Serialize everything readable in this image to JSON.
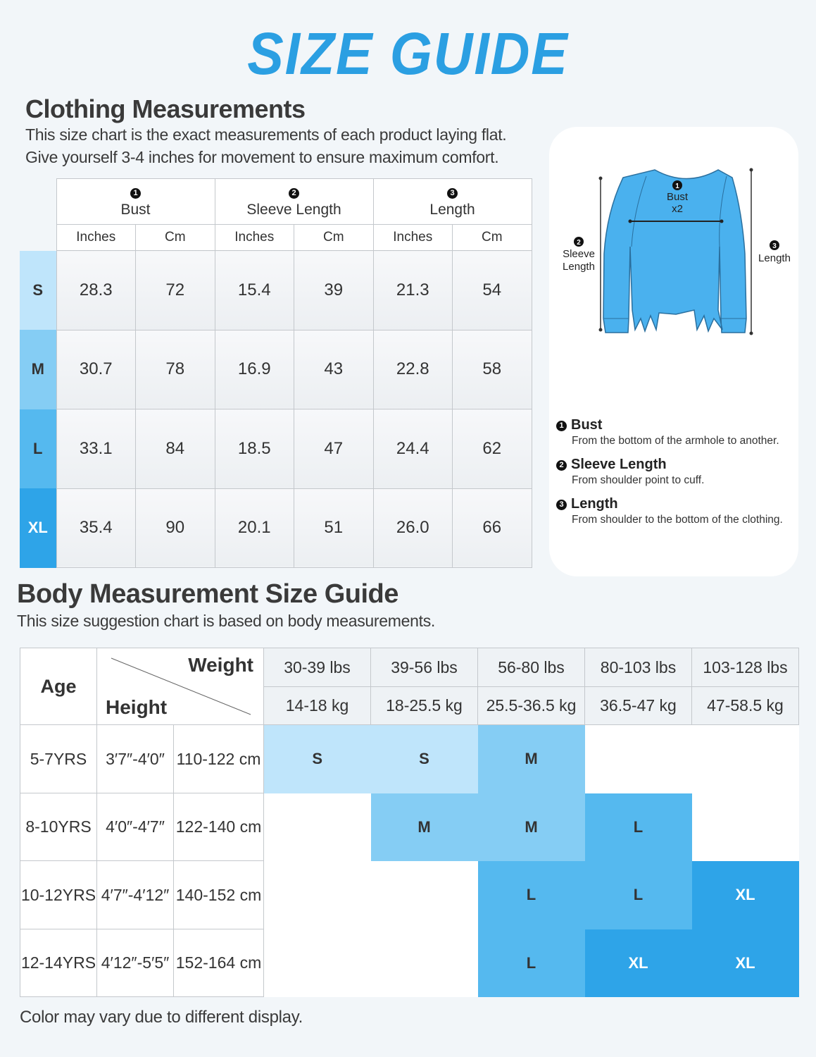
{
  "header": {
    "title": "SIZE GUIDE"
  },
  "clothing": {
    "title": "Clothing Measurements",
    "description": [
      "This size chart is the exact measurements of each product laying flat.",
      "Give yourself 3-4 inches for movement to ensure maximum comfort."
    ],
    "columns": [
      {
        "number": "1",
        "label": "Bust"
      },
      {
        "number": "2",
        "label": "Sleeve Length"
      },
      {
        "number": "3",
        "label": "Length"
      }
    ],
    "units": [
      "Inches",
      "Cm",
      "Inches",
      "Cm",
      "Inches",
      "Cm"
    ],
    "rows": [
      {
        "size": "S",
        "color": "#bfe5fb",
        "text_color": "#333333",
        "values": [
          "28.3",
          "72",
          "15.4",
          "39",
          "21.3",
          "54"
        ]
      },
      {
        "size": "M",
        "color": "#85cdf4",
        "text_color": "#333333",
        "values": [
          "30.7",
          "78",
          "16.9",
          "43",
          "22.8",
          "58"
        ]
      },
      {
        "size": "L",
        "color": "#55b9ef",
        "text_color": "#333333",
        "values": [
          "33.1",
          "84",
          "18.5",
          "47",
          "24.4",
          "62"
        ]
      },
      {
        "size": "XL",
        "color": "#2ea4e8",
        "text_color": "#ffffff",
        "values": [
          "35.4",
          "90",
          "20.1",
          "51",
          "26.0",
          "66"
        ]
      }
    ]
  },
  "diagram": {
    "bust": {
      "number": "1",
      "lines": [
        "Bust",
        "x2"
      ]
    },
    "sleeve": {
      "number": "2",
      "lines": [
        "Sleeve",
        "Length"
      ]
    },
    "length": {
      "number": "3",
      "lines": [
        "Length"
      ]
    }
  },
  "definitions": [
    {
      "number": "1",
      "term": "Bust",
      "description": "From the bottom of the armhole to another."
    },
    {
      "number": "2",
      "term": "Sleeve Length",
      "description": "From shoulder point to cuff."
    },
    {
      "number": "3",
      "term": "Length",
      "description": "From shoulder to the bottom of the clothing."
    }
  ],
  "body": {
    "title": "Body Measurement Size Guide",
    "description": "This size suggestion chart is based on body measurements.",
    "headers": {
      "age": "Age",
      "weight": "Weight",
      "height": "Height"
    },
    "weights": [
      {
        "lbs": "30-39 lbs",
        "kg": "14-18 kg"
      },
      {
        "lbs": "39-56 lbs",
        "kg": "18-25.5 kg"
      },
      {
        "lbs": "56-80 lbs",
        "kg": "25.5-36.5 kg"
      },
      {
        "lbs": "80-103 lbs",
        "kg": "36.5-47 kg"
      },
      {
        "lbs": "103-128 lbs",
        "kg": "47-58.5 kg"
      }
    ],
    "rows": [
      {
        "age": "5-7YRS",
        "height_ft": "3′7″-4′0″",
        "height_cm": "110-122 cm",
        "sizes": [
          "S",
          "S",
          "M",
          null,
          null
        ]
      },
      {
        "age": "8-10YRS",
        "height_ft": "4′0″-4′7″",
        "height_cm": "122-140 cm",
        "sizes": [
          null,
          "M",
          "M",
          "L",
          null
        ]
      },
      {
        "age": "10-12YRS",
        "height_ft": "4′7″-4′12″",
        "height_cm": "140-152 cm",
        "sizes": [
          null,
          null,
          "L",
          "L",
          "XL"
        ]
      },
      {
        "age": "12-14YRS",
        "height_ft": "4′12″-5′5″",
        "height_cm": "152-164 cm",
        "sizes": [
          null,
          null,
          "L",
          "XL",
          "XL"
        ]
      }
    ]
  },
  "footer": {
    "note": "Color may vary due to different display."
  }
}
